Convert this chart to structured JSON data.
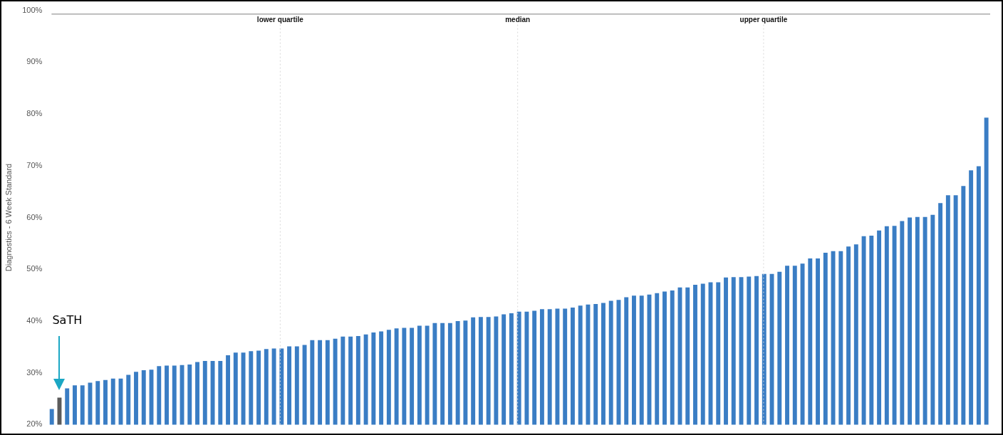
{
  "chart_data": {
    "type": "bar",
    "ylabel": "Diagnostics - 6 Week Standard",
    "categories": [
      null,
      null,
      null,
      null,
      null,
      null,
      null,
      null,
      null,
      null,
      null,
      null,
      null,
      null,
      null,
      null,
      null,
      null,
      null,
      null,
      null,
      null,
      null,
      null,
      null,
      null,
      null,
      null,
      null,
      null,
      null,
      null,
      null,
      null,
      null,
      null,
      null,
      null,
      null,
      null,
      null,
      null,
      null,
      null,
      null,
      null,
      null,
      null,
      null,
      null,
      null,
      null,
      null,
      null,
      null,
      null,
      null,
      null,
      null,
      null,
      null,
      null,
      null,
      null,
      null,
      null,
      null,
      null,
      null,
      null,
      null,
      null,
      null,
      null,
      null,
      null,
      null,
      null,
      null,
      null,
      null,
      null,
      null,
      null,
      null,
      null,
      null,
      null,
      null,
      null,
      null,
      null,
      null,
      null,
      null,
      null,
      null,
      null,
      null,
      null,
      null,
      null,
      null,
      null,
      null,
      null,
      null,
      null,
      null,
      null,
      null,
      null,
      null,
      null,
      null,
      null,
      null,
      null,
      null,
      null,
      null,
      null,
      null
    ],
    "values": [
      23.0,
      25.2,
      27.0,
      27.6,
      27.6,
      28.1,
      28.4,
      28.6,
      28.9,
      28.9,
      29.6,
      30.2,
      30.5,
      30.6,
      31.3,
      31.4,
      31.4,
      31.5,
      31.6,
      32.1,
      32.3,
      32.3,
      32.3,
      33.4,
      33.9,
      33.9,
      34.2,
      34.3,
      34.6,
      34.7,
      34.7,
      35.1,
      35.1,
      35.4,
      36.3,
      36.3,
      36.3,
      36.6,
      37.0,
      37.0,
      37.1,
      37.4,
      37.8,
      38.0,
      38.3,
      38.6,
      38.7,
      38.7,
      39.1,
      39.1,
      39.6,
      39.6,
      39.6,
      40.0,
      40.1,
      40.7,
      40.8,
      40.8,
      40.9,
      41.3,
      41.5,
      41.8,
      41.8,
      42.0,
      42.3,
      42.3,
      42.4,
      42.4,
      42.6,
      43.0,
      43.2,
      43.3,
      43.5,
      43.9,
      44.1,
      44.6,
      44.9,
      44.9,
      45.1,
      45.4,
      45.7,
      45.9,
      46.5,
      46.5,
      47.0,
      47.2,
      47.5,
      47.5,
      48.4,
      48.5,
      48.5,
      48.6,
      48.7,
      49.1,
      49.1,
      49.5,
      50.7,
      50.7,
      51.1,
      52.1,
      52.1,
      53.2,
      53.5,
      53.5,
      54.4,
      54.8,
      56.4,
      56.5,
      57.5,
      58.3,
      58.4,
      59.3,
      60.0,
      60.1,
      60.1,
      60.5,
      62.8,
      64.3,
      64.3,
      66.1,
      69.1,
      69.9,
      79.3
    ],
    "colors": [
      "#3a7dc4",
      "#5b5b5b",
      "#3a7dc4",
      "#3a7dc4",
      "#3a7dc4",
      "#3a7dc4",
      "#3a7dc4",
      "#3a7dc4",
      "#3a7dc4",
      "#3a7dc4",
      "#3a7dc4",
      "#3a7dc4",
      "#3a7dc4",
      "#3a7dc4",
      "#3a7dc4",
      "#3a7dc4",
      "#3a7dc4",
      "#3a7dc4",
      "#3a7dc4",
      "#3a7dc4",
      "#3a7dc4",
      "#3a7dc4",
      "#3a7dc4",
      "#3a7dc4",
      "#3a7dc4",
      "#3a7dc4",
      "#3a7dc4",
      "#3a7dc4",
      "#3a7dc4",
      "#3a7dc4",
      "#3a7dc4",
      "#3a7dc4",
      "#3a7dc4",
      "#3a7dc4",
      "#3a7dc4",
      "#3a7dc4",
      "#3a7dc4",
      "#3a7dc4",
      "#3a7dc4",
      "#3a7dc4",
      "#3a7dc4",
      "#3a7dc4",
      "#3a7dc4",
      "#3a7dc4",
      "#3a7dc4",
      "#3a7dc4",
      "#3a7dc4",
      "#3a7dc4",
      "#3a7dc4",
      "#3a7dc4",
      "#3a7dc4",
      "#3a7dc4",
      "#3a7dc4",
      "#3a7dc4",
      "#3a7dc4",
      "#3a7dc4",
      "#3a7dc4",
      "#3a7dc4",
      "#3a7dc4",
      "#3a7dc4",
      "#3a7dc4",
      "#3a7dc4",
      "#3a7dc4",
      "#3a7dc4",
      "#3a7dc4",
      "#3a7dc4",
      "#3a7dc4",
      "#3a7dc4",
      "#3a7dc4",
      "#3a7dc4",
      "#3a7dc4",
      "#3a7dc4",
      "#3a7dc4",
      "#3a7dc4",
      "#3a7dc4",
      "#3a7dc4",
      "#3a7dc4",
      "#3a7dc4",
      "#3a7dc4",
      "#3a7dc4",
      "#3a7dc4",
      "#3a7dc4",
      "#3a7dc4",
      "#3a7dc4",
      "#3a7dc4",
      "#3a7dc4",
      "#3a7dc4",
      "#3a7dc4",
      "#3a7dc4",
      "#3a7dc4",
      "#3a7dc4",
      "#3a7dc4",
      "#3a7dc4",
      "#3a7dc4",
      "#3a7dc4",
      "#3a7dc4",
      "#3a7dc4",
      "#3a7dc4",
      "#3a7dc4",
      "#3a7dc4",
      "#3a7dc4",
      "#3a7dc4",
      "#3a7dc4",
      "#3a7dc4",
      "#3a7dc4",
      "#3a7dc4",
      "#3a7dc4",
      "#3a7dc4",
      "#3a7dc4",
      "#3a7dc4",
      "#3a7dc4",
      "#3a7dc4",
      "#3a7dc4",
      "#3a7dc4",
      "#3a7dc4",
      "#3a7dc4",
      "#3a7dc4",
      "#3a7dc4",
      "#3a7dc4",
      "#3a7dc4",
      "#3a7dc4",
      "#3a7dc4",
      "#3a7dc4"
    ],
    "ylim": [
      20,
      100
    ],
    "yticks": [
      {
        "value": 20,
        "label": "20%"
      },
      {
        "value": 30,
        "label": "30%"
      },
      {
        "value": 40,
        "label": "40%"
      },
      {
        "value": 50,
        "label": "50%"
      },
      {
        "value": 60,
        "label": "60%"
      },
      {
        "value": 70,
        "label": "70%"
      },
      {
        "value": 80,
        "label": "80%"
      },
      {
        "value": 90,
        "label": "90%"
      },
      {
        "value": 100,
        "label": "100%"
      }
    ],
    "ref_lines": [
      {
        "axis": "y",
        "value": 99.3,
        "color": "#bbbbbb",
        "line_style": "solid"
      }
    ],
    "annotations": [
      "SaTH",
      "lower quartile",
      "median",
      "upper quartile"
    ],
    "grid": false,
    "legend": false,
    "tick_labels": "y"
  }
}
